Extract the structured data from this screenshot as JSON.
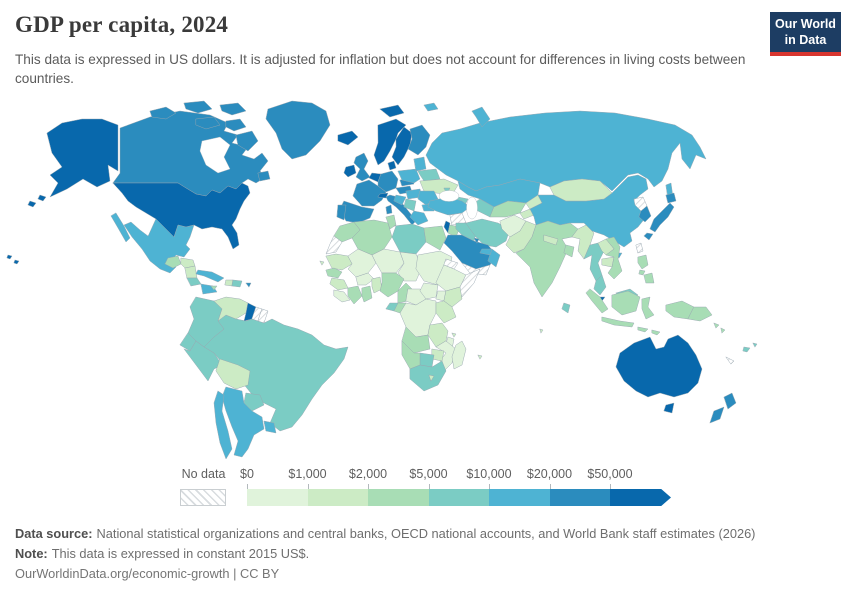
{
  "header": {
    "title": "GDP per capita, 2024",
    "subtitle": "This data is expressed in US dollars. It is adjusted for inflation but does not account for differences in living costs between countries.",
    "logo": {
      "line1": "Our World",
      "line2": "in Data",
      "navy": "#1d3d63",
      "red": "#d8352f"
    }
  },
  "legend": {
    "no_data_label": "No data",
    "tick_labels": [
      "$0",
      "$1,000",
      "$2,000",
      "$5,000",
      "$10,000",
      "$20,000",
      "$50,000"
    ],
    "bin_colors": [
      "#e0f3db",
      "#ccebc5",
      "#a8ddb5",
      "#7bccc4",
      "#4eb3d3",
      "#2b8cbe",
      "#0868ac"
    ]
  },
  "footer": {
    "data_source_label": "Data source:",
    "data_source_text": "National statistical organizations and central banks, OECD national accounts, and World Bank staff estimates (2026)",
    "note_label": "Note:",
    "note_text": "This data is expressed in constant 2015 US$.",
    "link_text": "OurWorldinData.org/economic-growth | CC BY"
  },
  "chart_data": {
    "type": "choropleth_map",
    "title": "GDP per capita, 2024",
    "unit": "constant 2015 US$",
    "legend_position": "bottom",
    "bins": [
      {
        "min": 0,
        "max": 1000,
        "color": "#e0f3db"
      },
      {
        "min": 1000,
        "max": 2000,
        "color": "#ccebc5"
      },
      {
        "min": 2000,
        "max": 5000,
        "color": "#a8ddb5"
      },
      {
        "min": 5000,
        "max": 10000,
        "color": "#7bccc4"
      },
      {
        "min": 10000,
        "max": 20000,
        "color": "#4eb3d3"
      },
      {
        "min": 20000,
        "max": 50000,
        "color": "#2b8cbe"
      },
      {
        "min": 50000,
        "max": null,
        "color": "#0868ac"
      }
    ],
    "no_data_style": "hatched",
    "countries": {
      "united-states": 6,
      "canada": 5,
      "greenland": 5,
      "iceland": 6,
      "mexico": 4,
      "guatemala": 2,
      "honduras": 1,
      "nicaragua": 1,
      "costa-rica": 3,
      "panama": 4,
      "cuba": 4,
      "jamaica": 2,
      "haiti": 1,
      "dominican-republic": 3,
      "puerto-rico": 5,
      "colombia": 3,
      "venezuela": 1,
      "guyana": 6,
      "suriname": "no-data",
      "french-guiana": "no-data",
      "ecuador": 3,
      "peru": 3,
      "brazil": 3,
      "bolivia": 1,
      "paraguay": 3,
      "uruguay": 4,
      "argentina": 4,
      "chile": 4,
      "united-kingdom": 5,
      "ireland": 6,
      "norway": 6,
      "sweden": 6,
      "finland": 5,
      "denmark": 6,
      "benelux": 6,
      "germany": 5,
      "france": 5,
      "switzerland": 6,
      "austria": 5,
      "czechia": 5,
      "poland": 4,
      "baltic-states": 4,
      "belarus": 3,
      "ukraine": 1,
      "moldova": 3,
      "slovakia-hungary": 4,
      "romania": 4,
      "serbia-balkans": 3,
      "bulgaria": 4,
      "croatia": 4,
      "greece": 4,
      "italy": 5,
      "spain": 5,
      "portugal": 5,
      "russia": 4,
      "kazakhstan": 4,
      "uzbekistan": 2,
      "turkmenistan": 3,
      "kyrgyzstan": 1,
      "tajikistan": 1,
      "azerbaijan": 3,
      "turkey": 4,
      "syria": "no-data",
      "iraq": 3,
      "israel": 6,
      "jordan": 2,
      "saudi-arabia": 5,
      "yemen": "no-data",
      "oman": 4,
      "united-arab-emirates": 4,
      "kuwait": 5,
      "iran": 3,
      "afghanistan": 0,
      "pakistan": 1,
      "india": 2,
      "nepal": 1,
      "bangladesh": 2,
      "sri-lanka": 3,
      "myanmar": 1,
      "thailand": 3,
      "laos": 1,
      "cambodia": 1,
      "vietnam": 2,
      "malaysia": 3,
      "singapore": 6,
      "indonesia": 2,
      "philippines": 2,
      "papua-new-guinea": 2,
      "china": 4,
      "mongolia": 1,
      "north-korea": "no-data",
      "south-korea": 5,
      "japan": 5,
      "taiwan": "no-data",
      "morocco": 2,
      "western-sahara": "no-data",
      "algeria": 2,
      "tunisia": 2,
      "libya": 3,
      "egypt": 2,
      "mauritania": 1,
      "mali": 0,
      "niger": 0,
      "chad": 0,
      "sudan": 0,
      "eritrea": "no-data",
      "ethiopia": 0,
      "somalia": "no-data",
      "senegal": 2,
      "guinea": 1,
      "sierra-leone-liberia": 0,
      "cote-divoire": 2,
      "ghana": 2,
      "burkina-faso": 0,
      "togo-benin": 1,
      "nigeria": 2,
      "cameroon": 2,
      "central-african-republic": 0,
      "south-sudan": 0,
      "dr-congo": 0,
      "congo": 2,
      "gabon": 3,
      "uganda": 0,
      "kenya": 1,
      "tanzania": 1,
      "angola": 2,
      "zambia": 1,
      "malawi": 0,
      "mozambique": 0,
      "zimbabwe": 1,
      "botswana": 3,
      "namibia": 2,
      "south-africa": 3,
      "lesotho": 1,
      "madagascar": 0,
      "australia": 6,
      "new-zealand": 5,
      "fiji": 3,
      "new-caledonia": "no-data",
      "small-islands": 1
    }
  }
}
